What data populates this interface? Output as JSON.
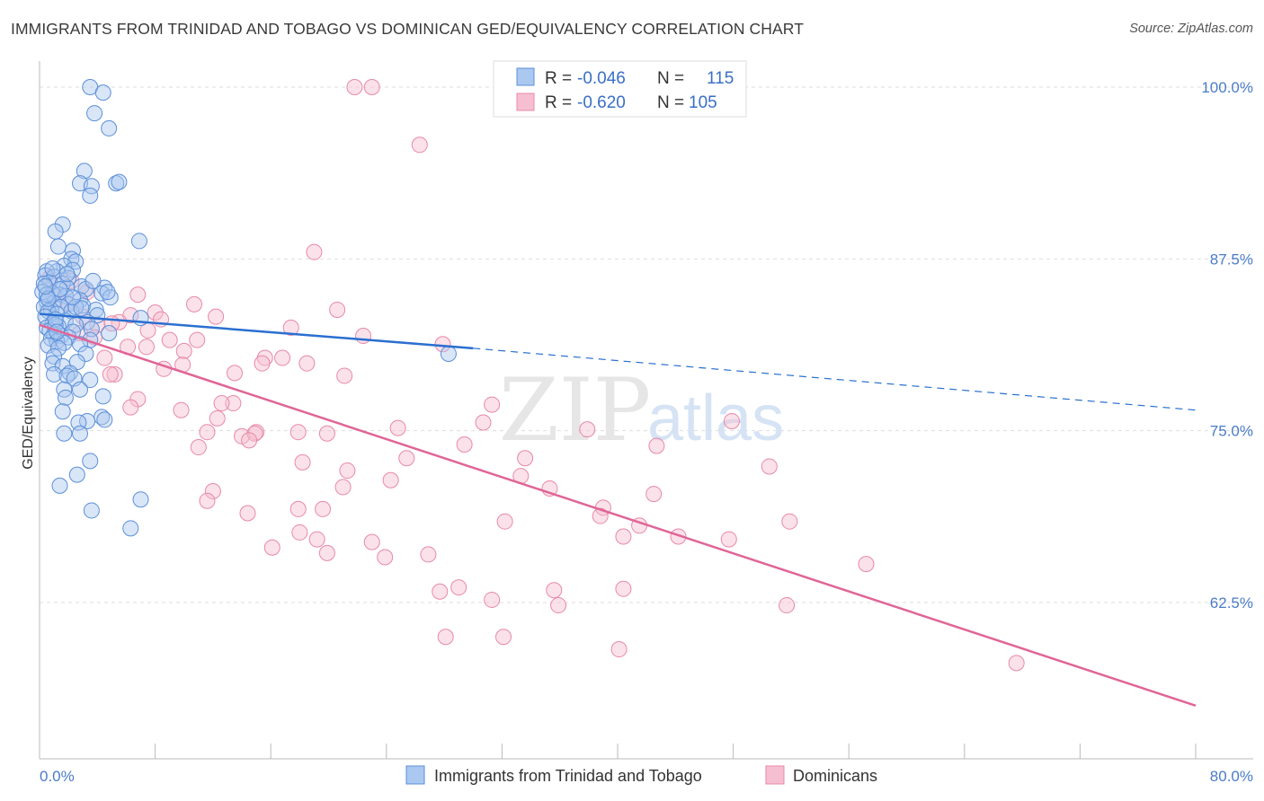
{
  "title": "IMMIGRANTS FROM TRINIDAD AND TOBAGO VS DOMINICAN GED/EQUIVALENCY CORRELATION CHART",
  "source": "Source: ZipAtlas.com",
  "watermark": {
    "zip": "ZIP",
    "atlas": "atlas"
  },
  "colors": {
    "blue_fill": "#aac8f0",
    "blue_stroke": "#5b8fd9",
    "blue_line": "#2a6fd0",
    "pink_fill": "#f6bfd1",
    "pink_stroke": "#e889a8",
    "pink_line": "#e06596",
    "axis_text": "#4a7cc7",
    "grid": "#dddddd"
  },
  "legend": {
    "rows": [
      {
        "r_label": "R =",
        "r_value": "-0.046",
        "n_label": "N =",
        "n_value": "115"
      },
      {
        "r_label": "R =",
        "r_value": "-0.620",
        "n_label": "N =",
        "n_value": "105"
      }
    ]
  },
  "chart_data": {
    "type": "scatter",
    "xlabel": "",
    "ylabel": "GED/Equivalency",
    "xlim": [
      0,
      80
    ],
    "ylim": [
      51,
      102
    ],
    "x_tick_labels": [
      "0.0%",
      "80.0%"
    ],
    "y_ticks": [
      62.5,
      75.0,
      87.5,
      100.0
    ],
    "y_tick_labels": [
      "62.5%",
      "75.0%",
      "87.5%",
      "100.0%"
    ],
    "grid": true,
    "legend_position": "top-center",
    "series": [
      {
        "name": "Immigrants from Trinidad and Tobago",
        "color": "blue",
        "trend": {
          "x0": 0.0,
          "y0": 83.5,
          "x1": 30.0,
          "y1": 81.0,
          "dashed_to_x": 80.0,
          "dashed_to_y": 76.5
        },
        "points": [
          [
            3.5,
            100.0
          ],
          [
            4.4,
            99.6
          ],
          [
            3.8,
            98.1
          ],
          [
            4.8,
            97.0
          ],
          [
            3.1,
            93.9
          ],
          [
            2.8,
            93.0
          ],
          [
            3.6,
            92.8
          ],
          [
            5.3,
            93.0
          ],
          [
            5.5,
            93.1
          ],
          [
            3.5,
            92.1
          ],
          [
            1.6,
            90.0
          ],
          [
            1.1,
            89.5
          ],
          [
            6.9,
            88.8
          ],
          [
            1.3,
            88.4
          ],
          [
            2.3,
            88.1
          ],
          [
            2.2,
            87.5
          ],
          [
            2.5,
            87.3
          ],
          [
            1.7,
            87.0
          ],
          [
            2.3,
            86.7
          ],
          [
            1.2,
            86.6
          ],
          [
            0.5,
            86.6
          ],
          [
            0.4,
            86.3
          ],
          [
            1.0,
            86.2
          ],
          [
            2.0,
            86.1
          ],
          [
            0.7,
            85.8
          ],
          [
            0.3,
            85.7
          ],
          [
            1.6,
            85.7
          ],
          [
            2.9,
            85.5
          ],
          [
            1.9,
            85.4
          ],
          [
            4.5,
            85.4
          ],
          [
            3.2,
            85.3
          ],
          [
            0.2,
            85.1
          ],
          [
            0.9,
            85.0
          ],
          [
            4.3,
            85.0
          ],
          [
            1.4,
            84.9
          ],
          [
            1.8,
            84.8
          ],
          [
            4.9,
            84.7
          ],
          [
            0.6,
            84.6
          ],
          [
            2.8,
            84.5
          ],
          [
            0.5,
            84.4
          ],
          [
            1.0,
            84.3
          ],
          [
            2.0,
            84.2
          ],
          [
            3.0,
            84.1
          ],
          [
            0.3,
            84.0
          ],
          [
            1.5,
            84.0
          ],
          [
            0.8,
            83.8
          ],
          [
            3.9,
            83.8
          ],
          [
            0.6,
            83.7
          ],
          [
            2.2,
            83.7
          ],
          [
            1.2,
            83.5
          ],
          [
            4.0,
            83.4
          ],
          [
            0.4,
            83.3
          ],
          [
            7.0,
            83.2
          ],
          [
            1.8,
            83.0
          ],
          [
            3.3,
            82.9
          ],
          [
            0.9,
            82.8
          ],
          [
            2.5,
            82.7
          ],
          [
            1.3,
            82.6
          ],
          [
            0.5,
            82.5
          ],
          [
            3.6,
            82.4
          ],
          [
            0.7,
            82.3
          ],
          [
            2.3,
            82.2
          ],
          [
            4.8,
            82.1
          ],
          [
            1.0,
            82.0
          ],
          [
            1.5,
            81.9
          ],
          [
            2.0,
            81.8
          ],
          [
            0.8,
            81.7
          ],
          [
            3.5,
            81.6
          ],
          [
            1.2,
            81.5
          ],
          [
            1.7,
            81.4
          ],
          [
            2.8,
            81.3
          ],
          [
            0.6,
            81.2
          ],
          [
            1.3,
            81.0
          ],
          [
            3.2,
            80.6
          ],
          [
            1.0,
            80.4
          ],
          [
            2.6,
            80.0
          ],
          [
            0.9,
            79.9
          ],
          [
            1.6,
            79.7
          ],
          [
            2.1,
            79.2
          ],
          [
            1.0,
            79.1
          ],
          [
            1.9,
            79.0
          ],
          [
            2.4,
            78.8
          ],
          [
            3.5,
            78.7
          ],
          [
            1.7,
            78.0
          ],
          [
            2.8,
            78.0
          ],
          [
            4.4,
            77.5
          ],
          [
            1.8,
            77.4
          ],
          [
            1.6,
            76.4
          ],
          [
            4.3,
            76.0
          ],
          [
            4.5,
            75.8
          ],
          [
            3.3,
            75.7
          ],
          [
            2.7,
            75.6
          ],
          [
            1.7,
            74.8
          ],
          [
            2.8,
            74.8
          ],
          [
            3.5,
            72.8
          ],
          [
            2.6,
            71.8
          ],
          [
            1.4,
            71.0
          ],
          [
            7.0,
            70.0
          ],
          [
            3.6,
            69.2
          ],
          [
            6.3,
            67.9
          ],
          [
            28.3,
            80.6
          ],
          [
            1.1,
            82.7
          ],
          [
            0.5,
            84.9
          ],
          [
            2.5,
            84.0
          ],
          [
            3.7,
            85.9
          ],
          [
            0.9,
            86.8
          ],
          [
            1.4,
            85.3
          ],
          [
            2.9,
            83.9
          ],
          [
            1.1,
            83.1
          ],
          [
            0.6,
            84.6
          ],
          [
            1.9,
            86.4
          ],
          [
            0.4,
            85.5
          ],
          [
            2.3,
            84.7
          ],
          [
            4.7,
            85.1
          ],
          [
            1.2,
            82.2
          ]
        ]
      },
      {
        "name": "Dominicans",
        "color": "pink",
        "trend": {
          "x0": 0.0,
          "y0": 82.7,
          "x1": 80.0,
          "y1": 55.0
        },
        "points": [
          [
            21.8,
            100.0
          ],
          [
            23.0,
            100.0
          ],
          [
            26.3,
            95.8
          ],
          [
            19.0,
            88.0
          ],
          [
            0.7,
            86.1
          ],
          [
            2.2,
            85.9
          ],
          [
            3.3,
            85.1
          ],
          [
            1.0,
            84.9
          ],
          [
            1.9,
            84.3
          ],
          [
            10.7,
            84.2
          ],
          [
            8.0,
            83.6
          ],
          [
            6.3,
            83.4
          ],
          [
            3.0,
            83.3
          ],
          [
            8.4,
            83.1
          ],
          [
            5.5,
            82.9
          ],
          [
            4.0,
            82.7
          ],
          [
            7.5,
            82.3
          ],
          [
            2.8,
            82.1
          ],
          [
            3.8,
            81.8
          ],
          [
            22.4,
            81.9
          ],
          [
            10.9,
            81.6
          ],
          [
            9.0,
            81.6
          ],
          [
            7.4,
            81.1
          ],
          [
            6.1,
            81.1
          ],
          [
            27.9,
            81.3
          ],
          [
            10.0,
            80.8
          ],
          [
            16.8,
            80.3
          ],
          [
            15.6,
            80.3
          ],
          [
            4.5,
            80.3
          ],
          [
            15.4,
            79.9
          ],
          [
            18.5,
            79.9
          ],
          [
            9.9,
            79.8
          ],
          [
            8.6,
            79.5
          ],
          [
            21.1,
            79.0
          ],
          [
            13.5,
            79.2
          ],
          [
            5.2,
            79.1
          ],
          [
            4.9,
            79.1
          ],
          [
            6.8,
            77.3
          ],
          [
            13.4,
            77.0
          ],
          [
            31.3,
            76.9
          ],
          [
            6.3,
            76.7
          ],
          [
            9.8,
            76.5
          ],
          [
            12.6,
            77.0
          ],
          [
            12.3,
            75.9
          ],
          [
            24.8,
            75.2
          ],
          [
            30.7,
            75.6
          ],
          [
            47.9,
            75.7
          ],
          [
            37.9,
            75.1
          ],
          [
            15.0,
            74.9
          ],
          [
            11.6,
            74.9
          ],
          [
            17.9,
            74.9
          ],
          [
            19.9,
            74.8
          ],
          [
            14.0,
            74.6
          ],
          [
            14.9,
            74.8
          ],
          [
            14.5,
            74.3
          ],
          [
            29.4,
            74.0
          ],
          [
            11.0,
            73.8
          ],
          [
            42.7,
            73.9
          ],
          [
            33.6,
            73.0
          ],
          [
            25.4,
            73.0
          ],
          [
            18.2,
            72.7
          ],
          [
            50.5,
            72.4
          ],
          [
            21.3,
            72.1
          ],
          [
            33.3,
            71.7
          ],
          [
            24.3,
            71.4
          ],
          [
            35.3,
            70.8
          ],
          [
            21.0,
            70.9
          ],
          [
            12.0,
            70.6
          ],
          [
            11.6,
            69.9
          ],
          [
            42.5,
            70.4
          ],
          [
            39.0,
            69.4
          ],
          [
            19.6,
            69.3
          ],
          [
            14.4,
            69.0
          ],
          [
            17.9,
            69.3
          ],
          [
            32.2,
            68.4
          ],
          [
            51.9,
            68.4
          ],
          [
            38.8,
            68.8
          ],
          [
            41.5,
            68.1
          ],
          [
            18.0,
            67.6
          ],
          [
            40.4,
            67.3
          ],
          [
            44.2,
            67.3
          ],
          [
            47.7,
            67.1
          ],
          [
            19.2,
            67.1
          ],
          [
            23.0,
            66.9
          ],
          [
            16.1,
            66.5
          ],
          [
            19.9,
            66.1
          ],
          [
            23.9,
            65.8
          ],
          [
            26.9,
            66.0
          ],
          [
            57.2,
            65.3
          ],
          [
            29.0,
            63.6
          ],
          [
            27.7,
            63.3
          ],
          [
            35.6,
            63.4
          ],
          [
            40.4,
            63.5
          ],
          [
            31.3,
            62.7
          ],
          [
            35.9,
            62.3
          ],
          [
            51.7,
            62.3
          ],
          [
            28.1,
            60.0
          ],
          [
            32.1,
            60.0
          ],
          [
            40.1,
            59.1
          ],
          [
            67.6,
            58.1
          ],
          [
            6.8,
            84.9
          ],
          [
            5.0,
            82.8
          ],
          [
            12.2,
            83.3
          ],
          [
            17.4,
            82.5
          ],
          [
            20.6,
            83.8
          ]
        ]
      }
    ]
  },
  "bottom_legend": [
    {
      "label": "Immigrants from Trinidad and Tobago"
    },
    {
      "label": "Dominicans"
    }
  ]
}
